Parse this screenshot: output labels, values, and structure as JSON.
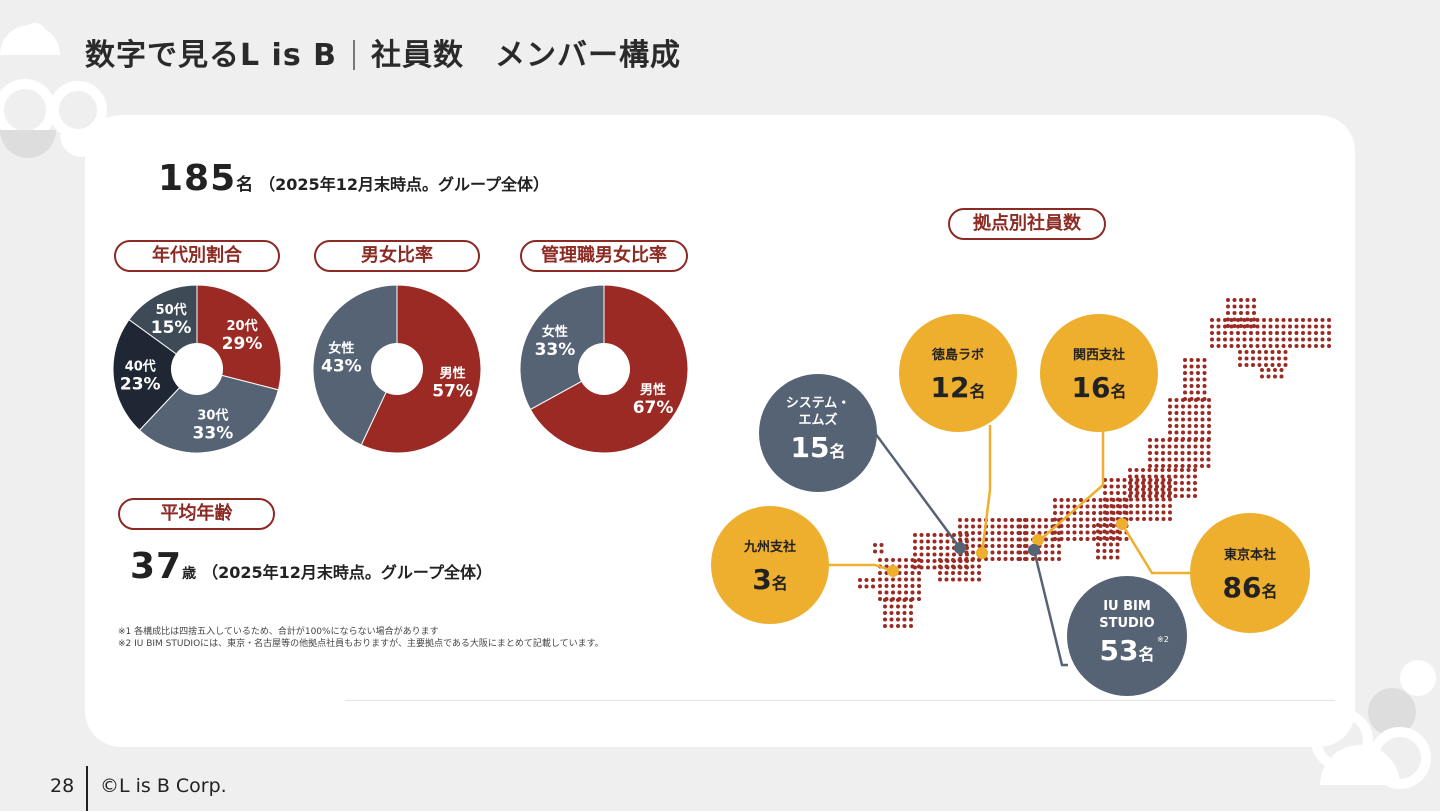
{
  "page": {
    "title": "数字で見るL is B",
    "subtitle": "社員数　メンバー構成",
    "page_number": "28",
    "copyright": "©L is B Corp."
  },
  "headcount": {
    "value": "185",
    "unit": "名",
    "note": "（2025年12月末時点。グループ全体）"
  },
  "avg_age": {
    "label": "平均年齢",
    "value": "37",
    "unit": "歳",
    "note": "（2025年12月末時点。グループ全体）"
  },
  "footnotes": [
    "※1 各構成比は四捨五入しているため、合計が100%にならない場合があります",
    "※2 IU BIM STUDIOには、東京・名古屋等の他拠点社員もおりますが、主要拠点である大阪にまとめて記載しています。"
  ],
  "colors": {
    "red": "#9b2a24",
    "slate": "#566375",
    "dark": "#1e2733",
    "darkslate": "#3f4a57",
    "gold": "#eeae2e",
    "accent": "#8c2a24"
  },
  "chart_data": [
    {
      "type": "pie",
      "title": "年代別割合",
      "categories": [
        "20代",
        "30代",
        "40代",
        "50代"
      ],
      "values": [
        29,
        33,
        23,
        15
      ],
      "unit": "%",
      "colors": [
        "#9b2a24",
        "#566375",
        "#1e2733",
        "#3f4a57"
      ]
    },
    {
      "type": "pie",
      "title": "男女比率",
      "categories": [
        "男性",
        "女性"
      ],
      "values": [
        57,
        43
      ],
      "unit": "%",
      "colors": [
        "#9b2a24",
        "#566375"
      ]
    },
    {
      "type": "pie",
      "title": "管理職男女比率",
      "categories": [
        "男性",
        "女性"
      ],
      "values": [
        67,
        33
      ],
      "unit": "%",
      "colors": [
        "#9b2a24",
        "#566375"
      ]
    }
  ],
  "offices": {
    "title": "拠点別社員数",
    "items": [
      {
        "name": "システム・エムズ",
        "line1": "システム・",
        "line2": "エムズ",
        "count": "15",
        "unit": "名"
      },
      {
        "name": "徳島ラボ",
        "count": "12",
        "unit": "名"
      },
      {
        "name": "関西支社",
        "count": "16",
        "unit": "名"
      },
      {
        "name": "九州支社",
        "count": "3",
        "unit": "名"
      },
      {
        "name": "東京本社",
        "count": "86",
        "unit": "名"
      },
      {
        "name": "IU BIM STUDIO",
        "line1": "IU BIM",
        "line2": "STUDIO",
        "count": "53",
        "unit": "名",
        "mark": "※2"
      }
    ]
  }
}
